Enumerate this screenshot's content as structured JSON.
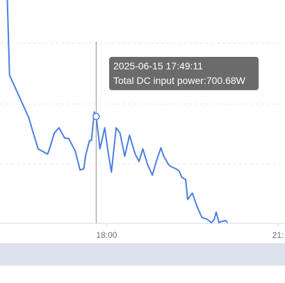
{
  "chart_data": {
    "type": "line",
    "x_tick_labels": [
      "18:00",
      "21:"
    ],
    "tooltip": {
      "time": "2025-06-15 17:49:11",
      "label": "Total DC input power:700.68W"
    },
    "series": [
      {
        "color": "#4a7de0",
        "points": [
          [
            "16:08",
            1050
          ],
          [
            "16:18",
            740
          ],
          [
            "16:28",
            720
          ],
          [
            "16:38",
            700
          ],
          [
            "16:48",
            670
          ],
          [
            "16:58",
            665
          ],
          [
            "17:00",
            670
          ],
          [
            "17:05",
            685
          ],
          [
            "17:10",
            690
          ],
          [
            "17:16",
            680
          ],
          [
            "17:20",
            680
          ],
          [
            "17:27",
            668
          ],
          [
            "17:32",
            650
          ],
          [
            "17:36",
            651
          ],
          [
            "17:38",
            664
          ],
          [
            "17:42",
            678
          ],
          [
            "17:44",
            678
          ],
          [
            "17:47",
            705
          ],
          [
            "17:49",
            700.7
          ],
          [
            "17:53",
            670
          ],
          [
            "17:58",
            690
          ],
          [
            "18:01",
            670
          ],
          [
            "18:05",
            648
          ],
          [
            "18:10",
            690
          ],
          [
            "18:14",
            685
          ],
          [
            "18:19",
            663
          ],
          [
            "18:24",
            683
          ],
          [
            "18:30",
            665
          ],
          [
            "18:34",
            658
          ],
          [
            "18:38",
            670
          ],
          [
            "18:43",
            655
          ],
          [
            "18:48",
            645
          ],
          [
            "18:52",
            658
          ],
          [
            "18:57",
            671
          ],
          [
            "19:00",
            663
          ],
          [
            "19:05",
            655
          ],
          [
            "19:08",
            653
          ],
          [
            "19:13",
            651
          ],
          [
            "19:16",
            649
          ],
          [
            "19:19",
            643
          ],
          [
            "19:23",
            641
          ],
          [
            "19:25",
            622
          ],
          [
            "19:30",
            628
          ],
          [
            "19:35",
            615
          ],
          [
            "19:40",
            605
          ],
          [
            "19:46",
            603
          ],
          [
            "19:50",
            600
          ],
          [
            "19:53",
            603
          ],
          [
            "19:55",
            610
          ],
          [
            "19:58",
            600
          ],
          [
            "20:00",
            601
          ],
          [
            "20:05",
            602
          ],
          [
            "20:07",
            600
          ]
        ]
      }
    ],
    "grid": true
  }
}
